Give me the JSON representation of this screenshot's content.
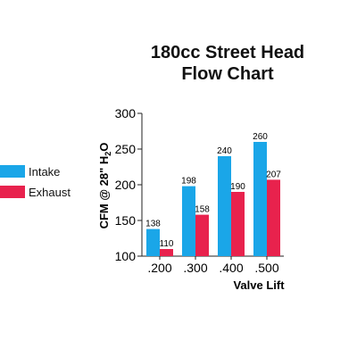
{
  "title_lines": [
    "180cc Street Head",
    "Flow Chart"
  ],
  "chart_data": {
    "type": "bar",
    "title": "180cc Street Head Flow Chart",
    "categories": [
      ".200",
      ".300",
      ".400",
      ".500"
    ],
    "series": [
      {
        "name": "Intake",
        "color": "#1aa6e8",
        "values": [
          138,
          198,
          240,
          260
        ]
      },
      {
        "name": "Exhaust",
        "color": "#e8224d",
        "values": [
          110,
          158,
          190,
          207
        ]
      }
    ],
    "xlabel": "Valve Lift",
    "ylabel": "CFM @ 28\" H2O",
    "ylim": [
      100,
      300
    ],
    "yticks": [
      "100",
      "150",
      "200",
      "250",
      "300"
    ],
    "grid": false,
    "legend": "left"
  }
}
